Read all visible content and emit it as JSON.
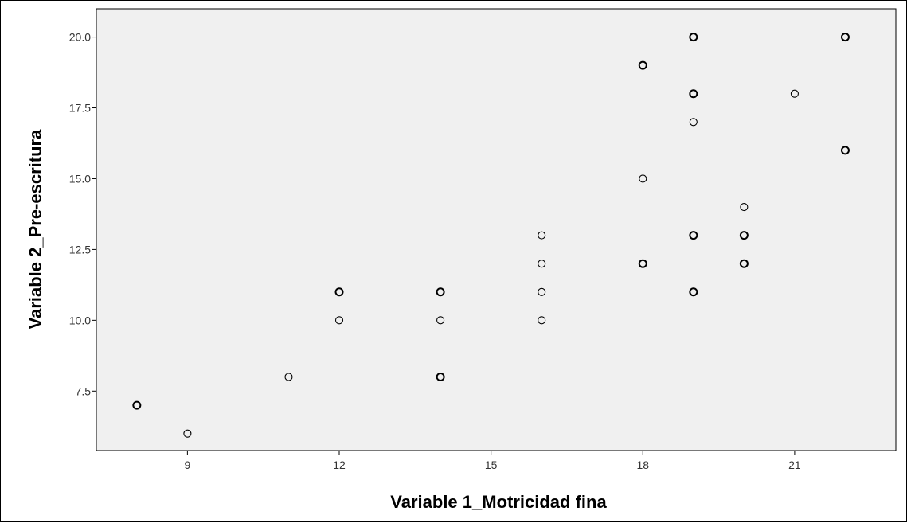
{
  "chart_data": {
    "type": "scatter",
    "title": "",
    "xlabel": "Variable 1_Motricidad fina",
    "ylabel": "Variable 2_Pre-escritura",
    "xlim": [
      7.2,
      23.0
    ],
    "ylim": [
      5.4,
      21.0
    ],
    "x_ticks": [
      9,
      12,
      15,
      18,
      21
    ],
    "x_tick_labels": [
      "9",
      "12",
      "15",
      "18",
      "21"
    ],
    "y_ticks": [
      7.5,
      10.0,
      12.5,
      15.0,
      17.5,
      20.0
    ],
    "y_tick_labels": [
      "7.5",
      "10.0",
      "12.5",
      "15.0",
      "17.5",
      "20.0"
    ],
    "grid": false,
    "legend": "none",
    "colors": {
      "plot_background": "#f0f0f0",
      "marker_stroke": "#000000",
      "marker_fill": "#f0f0f0"
    },
    "series": [
      {
        "points": [
          {
            "x": 8,
            "y": 7,
            "count": 2
          },
          {
            "x": 9,
            "y": 6,
            "count": 1
          },
          {
            "x": 11,
            "y": 8,
            "count": 1
          },
          {
            "x": 12,
            "y": 11,
            "count": 2
          },
          {
            "x": 12,
            "y": 10,
            "count": 1
          },
          {
            "x": 14,
            "y": 11,
            "count": 2
          },
          {
            "x": 14,
            "y": 10,
            "count": 1
          },
          {
            "x": 14,
            "y": 8,
            "count": 2
          },
          {
            "x": 16,
            "y": 13,
            "count": 1
          },
          {
            "x": 16,
            "y": 12,
            "count": 1
          },
          {
            "x": 16,
            "y": 11,
            "count": 1
          },
          {
            "x": 16,
            "y": 10,
            "count": 1
          },
          {
            "x": 18,
            "y": 19,
            "count": 2
          },
          {
            "x": 18,
            "y": 15,
            "count": 1
          },
          {
            "x": 18,
            "y": 12,
            "count": 2
          },
          {
            "x": 19,
            "y": 20,
            "count": 2
          },
          {
            "x": 19,
            "y": 18,
            "count": 2
          },
          {
            "x": 19,
            "y": 17,
            "count": 1
          },
          {
            "x": 19,
            "y": 13,
            "count": 2
          },
          {
            "x": 19,
            "y": 11,
            "count": 2
          },
          {
            "x": 20,
            "y": 14,
            "count": 1
          },
          {
            "x": 20,
            "y": 13,
            "count": 2
          },
          {
            "x": 20,
            "y": 12,
            "count": 2
          },
          {
            "x": 21,
            "y": 18,
            "count": 1
          },
          {
            "x": 22,
            "y": 20,
            "count": 2
          },
          {
            "x": 22,
            "y": 16,
            "count": 2
          }
        ]
      }
    ]
  }
}
